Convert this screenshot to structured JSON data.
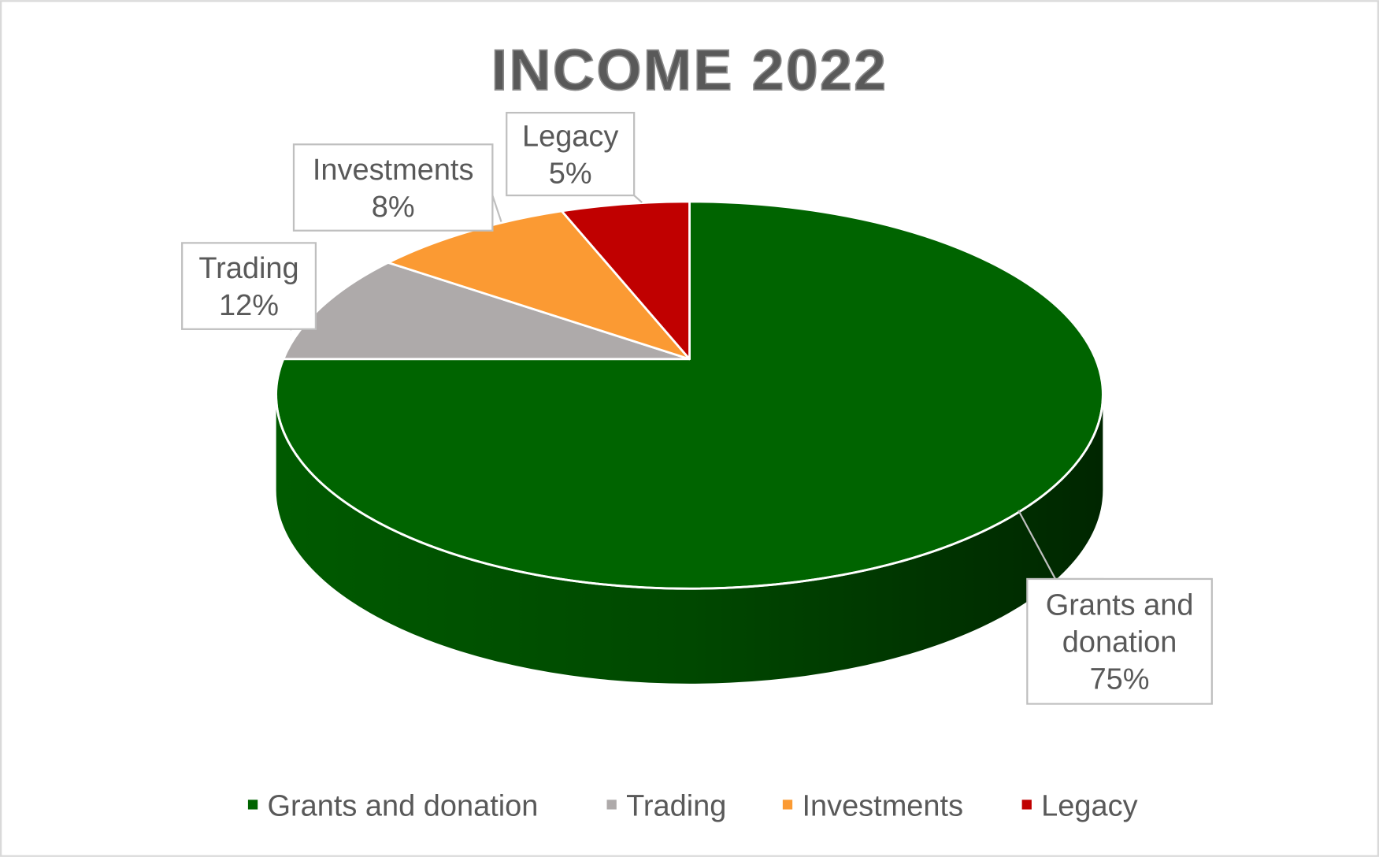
{
  "chart_data": {
    "type": "pie",
    "style": "3d",
    "title": "INCOME 2022",
    "categories": [
      "Grants and donation",
      "Trading",
      "Investments",
      "Legacy"
    ],
    "values": [
      75,
      12,
      8,
      5
    ],
    "unit": "%",
    "colors": [
      "#006400",
      "#aeaaaa",
      "#fb9a33",
      "#c00000"
    ],
    "data_labels": [
      {
        "lines": [
          "Grants and",
          "donation",
          "75%"
        ]
      },
      {
        "lines": [
          "Trading",
          "12%"
        ]
      },
      {
        "lines": [
          "Investments",
          "8%"
        ]
      },
      {
        "lines": [
          "Legacy",
          "5%"
        ]
      }
    ],
    "legend": {
      "placement": "bottom",
      "entries": [
        "Grants and donation",
        "Trading",
        "Investments",
        "Legacy"
      ]
    }
  }
}
